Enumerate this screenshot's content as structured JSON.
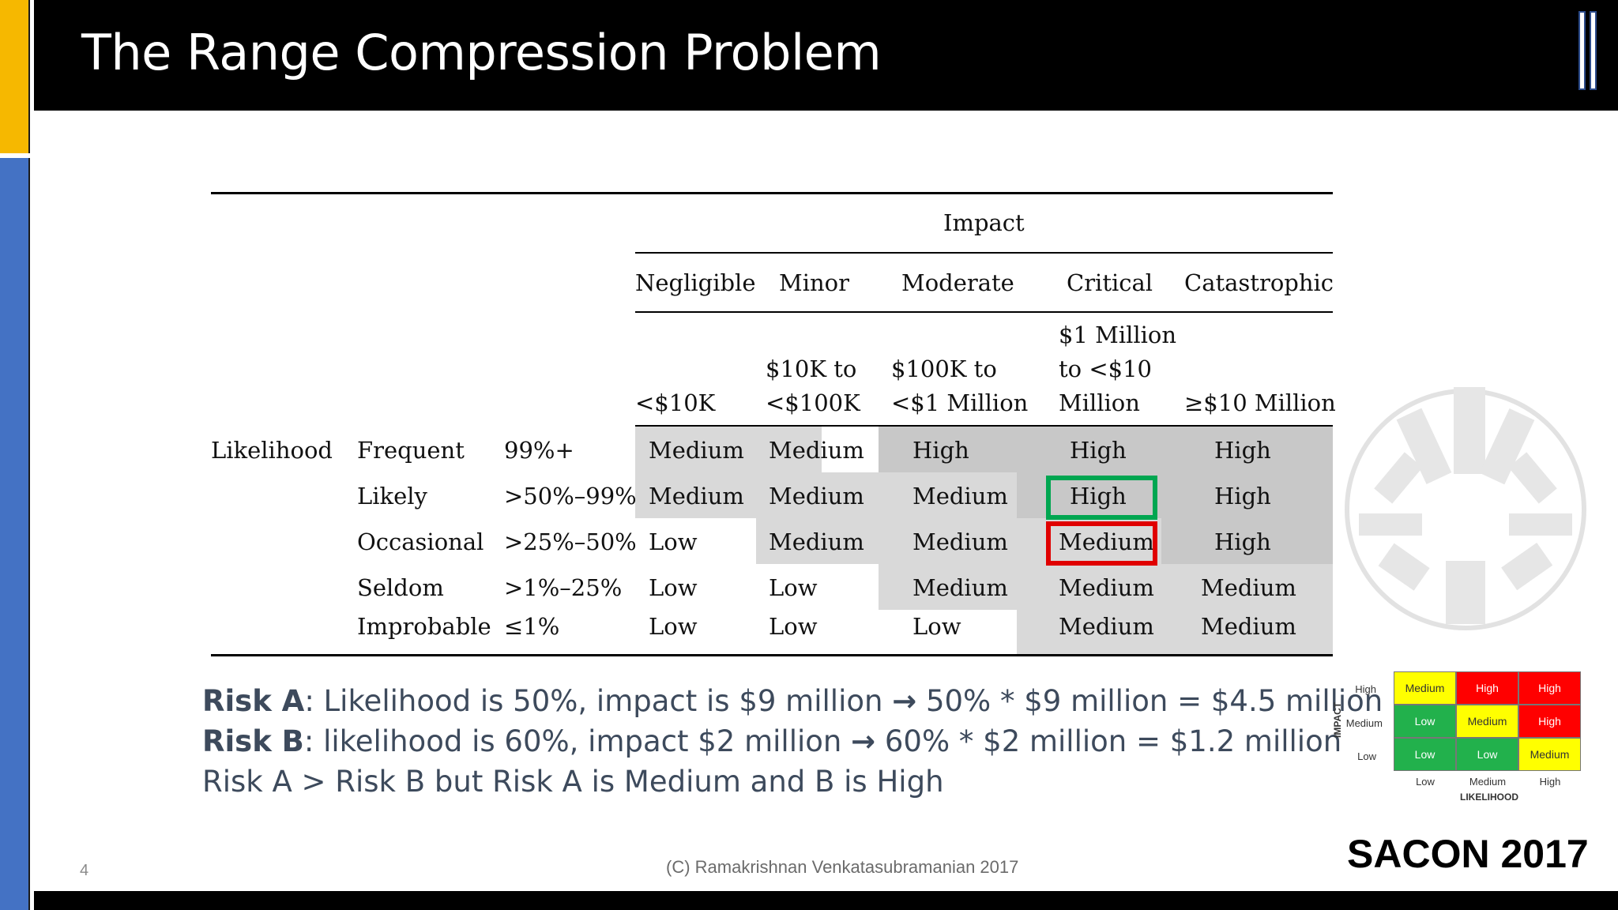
{
  "slide": {
    "title": "The Range Compression Problem",
    "page_number": "4",
    "copyright": "(C) Ramakrishnan Venkatasubramanian 2017",
    "event": "SACON 2017"
  },
  "table": {
    "impact_header": "Impact",
    "likelihood_header": "Likelihood",
    "impact_categories": [
      "Negligible",
      "Minor",
      "Moderate",
      "Critical",
      "Catastrophic"
    ],
    "impact_ranges": [
      [
        "<$10K"
      ],
      [
        "$10K to",
        "<$100K"
      ],
      [
        "$100K to",
        "<$1 Million"
      ],
      [
        "$1 Million",
        "to <$10",
        "Million"
      ],
      [
        "≥$10 Million"
      ]
    ],
    "rows": [
      {
        "label": "Frequent",
        "prob": "99%+",
        "cells": [
          "Medium",
          "Medium",
          "High",
          "High",
          "High"
        ]
      },
      {
        "label": "Likely",
        "prob": ">50%–99%",
        "cells": [
          "Medium",
          "Medium",
          "Medium",
          "High",
          "High"
        ]
      },
      {
        "label": "Occasional",
        "prob": ">25%–50%",
        "cells": [
          "Low",
          "Medium",
          "Medium",
          "Medium",
          "High"
        ]
      },
      {
        "label": "Seldom",
        "prob": ">1%–25%",
        "cells": [
          "Low",
          "Low",
          "Medium",
          "Medium",
          "Medium"
        ]
      },
      {
        "label": "Improbable",
        "prob": "≤1%",
        "cells": [
          "Low",
          "Low",
          "Low",
          "Medium",
          "Medium"
        ]
      }
    ]
  },
  "statements": {
    "risk_a_label": "Risk A",
    "risk_a_text": ": Likelihood is 50%, impact is $9 million ",
    "risk_a_calc": " 50% * $9 million = $4.5 million",
    "risk_b_label": "Risk B",
    "risk_b_text": ": likelihood is 60%, impact $2 million ",
    "risk_b_calc": " 60% * $2 million = $1.2 million",
    "conclusion": "Risk A > Risk B but Risk A is Medium and B is High",
    "arrow": "→"
  },
  "mini_matrix": {
    "impact_axis": "IMPACT",
    "likelihood_axis": "LIKELIHOOD",
    "y_labels": [
      "High",
      "Medium",
      "Low"
    ],
    "x_labels": [
      "Low",
      "Medium",
      "High"
    ],
    "cells": [
      [
        "Medium",
        "High",
        "High"
      ],
      [
        "Low",
        "Medium",
        "High"
      ],
      [
        "Low",
        "Low",
        "Medium"
      ]
    ],
    "colors": {
      "Low": "#22b14c",
      "Medium": "#ffff00",
      "High": "#ff0000"
    }
  }
}
